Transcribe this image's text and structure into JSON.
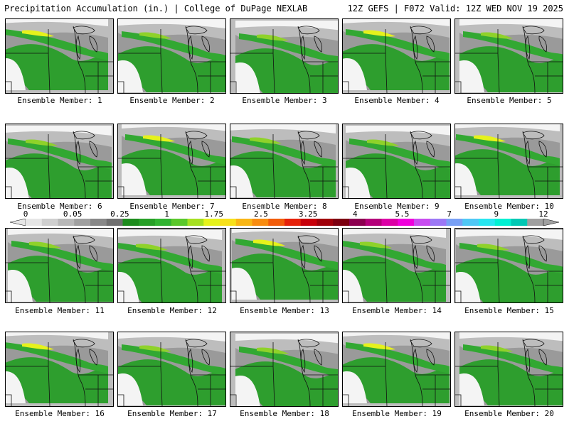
{
  "header": {
    "left_title": "Precipitation Accumulation (in.) | College of DuPage NEXLAB",
    "right_title": "12Z GEFS | F072 Valid: 12Z WED NOV 19 2025"
  },
  "legend": {
    "ticks": [
      "0",
      "0.05",
      "0.25",
      "1",
      "1.75",
      "2.5",
      "3.25",
      "4",
      "5.5",
      "7",
      "9",
      "12"
    ],
    "colors": [
      "#e6e6e6",
      "#cfcfcf",
      "#b8b8b8",
      "#a0a0a0",
      "#888888",
      "#707070",
      "#1e8c1e",
      "#27a027",
      "#31b431",
      "#5ac82b",
      "#a6e021",
      "#e6f21c",
      "#f7e01a",
      "#f9b615",
      "#f98c10",
      "#f25c0a",
      "#e6220a",
      "#c8000a",
      "#a0000a",
      "#7c0010",
      "#8c0050",
      "#b4007a",
      "#dc00a6",
      "#f000dc",
      "#c84cf0",
      "#9c78f5",
      "#78a0f5",
      "#50c8f5",
      "#28e6f0",
      "#00f0d2",
      "#00c8b4",
      "#a0a0a0"
    ]
  },
  "members": [
    {
      "label": "Ensemble Member: 1"
    },
    {
      "label": "Ensemble Member: 2"
    },
    {
      "label": "Ensemble Member: 3"
    },
    {
      "label": "Ensemble Member: 4"
    },
    {
      "label": "Ensemble Member: 5"
    },
    {
      "label": "Ensemble Member: 6"
    },
    {
      "label": "Ensemble Member: 7"
    },
    {
      "label": "Ensemble Member: 8"
    },
    {
      "label": "Ensemble Member: 9"
    },
    {
      "label": "Ensemble Member: 10"
    },
    {
      "label": "Ensemble Member: 11"
    },
    {
      "label": "Ensemble Member: 12"
    },
    {
      "label": "Ensemble Member: 13"
    },
    {
      "label": "Ensemble Member: 14"
    },
    {
      "label": "Ensemble Member: 15"
    },
    {
      "label": "Ensemble Member: 16"
    },
    {
      "label": "Ensemble Member: 17"
    },
    {
      "label": "Ensemble Member: 18"
    },
    {
      "label": "Ensemble Member: 19"
    },
    {
      "label": "Ensemble Member: 20"
    }
  ]
}
